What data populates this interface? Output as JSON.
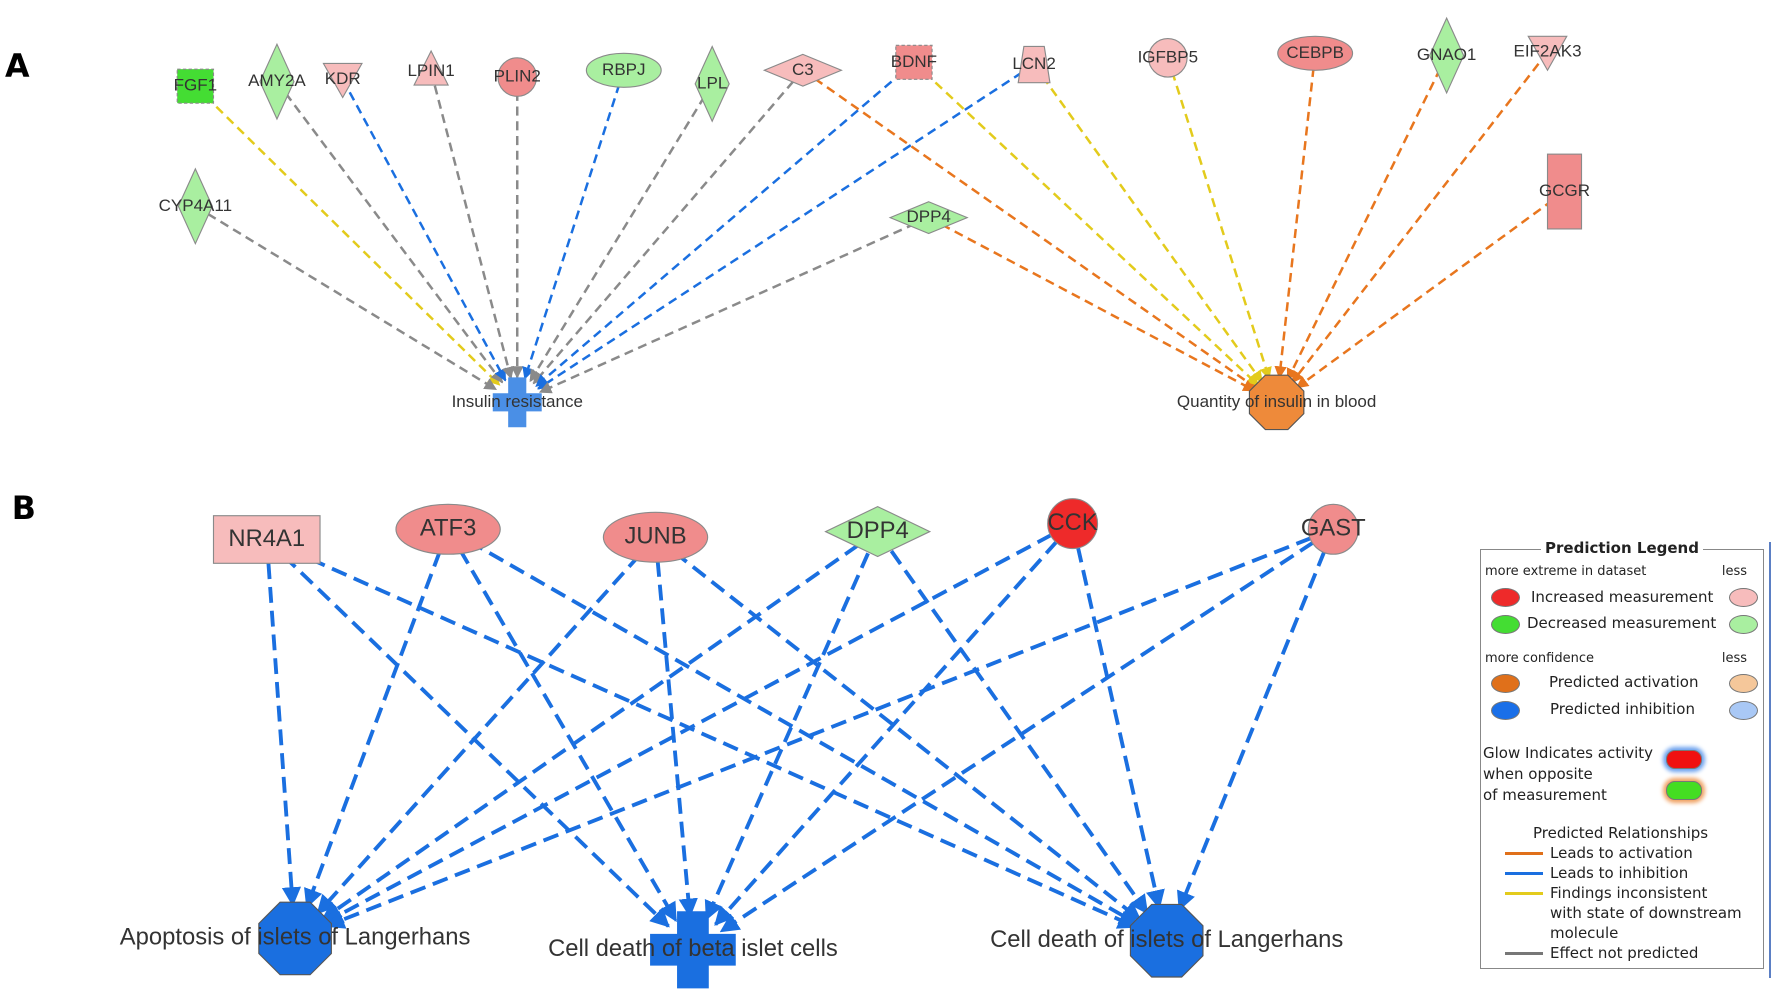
{
  "panels": {
    "a": "A",
    "b": "B"
  },
  "colors": {
    "activation": "#e8761e",
    "inhibition": "#1a6fe0",
    "inconsistent": "#e3cb1c",
    "not_predicted": "#8a8a8a",
    "increased_strong": "#ee2a2a",
    "increased_medium": "#f08c8c",
    "increased_weak": "#f7bcbc",
    "decreased_strong": "#44dd33",
    "decreased_weak": "#a9efa0",
    "predicted_activation": "#ee8a3a",
    "predicted_inhibition": "#1a6fe0",
    "predicted_inhibition_light": "#4a8fe6"
  },
  "panel_a": {
    "nodes": [
      {
        "id": "FGF1",
        "label": "FGF1",
        "shape": "rect-dashed",
        "fill": "decreased_strong"
      },
      {
        "id": "AMY2A",
        "label": "AMY2A",
        "shape": "diamond-tall",
        "fill": "decreased_weak"
      },
      {
        "id": "KDR",
        "label": "KDR",
        "shape": "triangle-down",
        "fill": "increased_weak"
      },
      {
        "id": "LPIN1",
        "label": "LPIN1",
        "shape": "triangle-up",
        "fill": "increased_weak"
      },
      {
        "id": "PLIN2",
        "label": "PLIN2",
        "shape": "circle",
        "fill": "increased_medium"
      },
      {
        "id": "RBPJ",
        "label": "RBPJ",
        "shape": "ellipse",
        "fill": "decreased_weak"
      },
      {
        "id": "LPL",
        "label": "LPL",
        "shape": "diamond-tall",
        "fill": "decreased_weak"
      },
      {
        "id": "C3",
        "label": "C3",
        "shape": "diamond-wide",
        "fill": "increased_weak"
      },
      {
        "id": "BDNF",
        "label": "BDNF",
        "shape": "rect-dashed",
        "fill": "increased_medium"
      },
      {
        "id": "LCN2",
        "label": "LCN2",
        "shape": "trapezoid",
        "fill": "increased_weak"
      },
      {
        "id": "IGFBP5",
        "label": "IGFBP5",
        "shape": "circle",
        "fill": "increased_weak"
      },
      {
        "id": "CEBPB",
        "label": "CEBPB",
        "shape": "ellipse",
        "fill": "increased_medium"
      },
      {
        "id": "GNAO1",
        "label": "GNAO1",
        "shape": "diamond-tall",
        "fill": "decreased_weak"
      },
      {
        "id": "EIF2AK3",
        "label": "EIF2AK3",
        "shape": "triangle-down",
        "fill": "increased_weak"
      },
      {
        "id": "CYP4A11",
        "label": "CYP4A11",
        "shape": "diamond-tall",
        "fill": "decreased_weak"
      },
      {
        "id": "DPP4",
        "label": "DPP4",
        "shape": "diamond-wide",
        "fill": "decreased_weak"
      },
      {
        "id": "GCGR",
        "label": "GCGR",
        "shape": "rect-tall",
        "fill": "increased_medium"
      },
      {
        "id": "IR",
        "label": "Insulin resistance",
        "shape": "cross",
        "fill": "predicted_inhibition_light"
      },
      {
        "id": "QIB",
        "label": "Quantity of insulin in blood",
        "shape": "octagon",
        "fill": "predicted_activation"
      }
    ],
    "edges": [
      {
        "from": "FGF1",
        "to": "IR",
        "type": "inconsistent"
      },
      {
        "from": "AMY2A",
        "to": "IR",
        "type": "not_predicted"
      },
      {
        "from": "KDR",
        "to": "IR",
        "type": "inhibition"
      },
      {
        "from": "LPIN1",
        "to": "IR",
        "type": "not_predicted"
      },
      {
        "from": "PLIN2",
        "to": "IR",
        "type": "not_predicted"
      },
      {
        "from": "RBPJ",
        "to": "IR",
        "type": "inhibition"
      },
      {
        "from": "LPL",
        "to": "IR",
        "type": "not_predicted"
      },
      {
        "from": "C3",
        "to": "IR",
        "type": "not_predicted"
      },
      {
        "from": "BDNF",
        "to": "IR",
        "type": "inhibition"
      },
      {
        "from": "LCN2",
        "to": "IR",
        "type": "inhibition"
      },
      {
        "from": "CYP4A11",
        "to": "IR",
        "type": "not_predicted"
      },
      {
        "from": "DPP4",
        "to": "IR",
        "type": "not_predicted"
      },
      {
        "from": "C3",
        "to": "QIB",
        "type": "activation"
      },
      {
        "from": "BDNF",
        "to": "QIB",
        "type": "inconsistent"
      },
      {
        "from": "LCN2",
        "to": "QIB",
        "type": "inconsistent"
      },
      {
        "from": "IGFBP5",
        "to": "QIB",
        "type": "inconsistent"
      },
      {
        "from": "CEBPB",
        "to": "QIB",
        "type": "activation"
      },
      {
        "from": "GNAO1",
        "to": "QIB",
        "type": "activation"
      },
      {
        "from": "EIF2AK3",
        "to": "QIB",
        "type": "activation"
      },
      {
        "from": "GCGR",
        "to": "QIB",
        "type": "activation"
      },
      {
        "from": "DPP4",
        "to": "QIB",
        "type": "activation"
      }
    ]
  },
  "panel_b": {
    "nodes": [
      {
        "id": "NR4A1",
        "label": "NR4A1",
        "shape": "rect",
        "fill": "increased_weak"
      },
      {
        "id": "ATF3",
        "label": "ATF3",
        "shape": "ellipse",
        "fill": "increased_medium"
      },
      {
        "id": "JUNB",
        "label": "JUNB",
        "shape": "ellipse",
        "fill": "increased_medium"
      },
      {
        "id": "DPP4",
        "label": "DPP4",
        "shape": "diamond-wide",
        "fill": "decreased_weak"
      },
      {
        "id": "CCK",
        "label": "CCK",
        "shape": "circle",
        "fill": "increased_strong"
      },
      {
        "id": "GAST",
        "label": "GAST",
        "shape": "circle",
        "fill": "increased_medium"
      },
      {
        "id": "APO",
        "label": "Apoptosis of islets of Langerhans",
        "shape": "octagon",
        "fill": "predicted_inhibition"
      },
      {
        "id": "CDB",
        "label": "Cell death of beta islet cells",
        "shape": "cross",
        "fill": "predicted_inhibition"
      },
      {
        "id": "CDI",
        "label": "Cell death of islets of Langerhans",
        "shape": "octagon",
        "fill": "predicted_inhibition"
      }
    ],
    "edges": [
      {
        "from": "NR4A1",
        "to": "APO",
        "type": "inhibition"
      },
      {
        "from": "NR4A1",
        "to": "CDB",
        "type": "inhibition"
      },
      {
        "from": "NR4A1",
        "to": "CDI",
        "type": "inhibition"
      },
      {
        "from": "ATF3",
        "to": "APO",
        "type": "inhibition"
      },
      {
        "from": "ATF3",
        "to": "CDB",
        "type": "inhibition"
      },
      {
        "from": "ATF3",
        "to": "CDI",
        "type": "inhibition"
      },
      {
        "from": "JUNB",
        "to": "APO",
        "type": "inhibition"
      },
      {
        "from": "JUNB",
        "to": "CDB",
        "type": "inhibition"
      },
      {
        "from": "JUNB",
        "to": "CDI",
        "type": "inhibition"
      },
      {
        "from": "DPP4",
        "to": "APO",
        "type": "inhibition"
      },
      {
        "from": "DPP4",
        "to": "CDB",
        "type": "inhibition"
      },
      {
        "from": "DPP4",
        "to": "CDI",
        "type": "inhibition"
      },
      {
        "from": "CCK",
        "to": "APO",
        "type": "inhibition"
      },
      {
        "from": "CCK",
        "to": "CDB",
        "type": "inhibition"
      },
      {
        "from": "CCK",
        "to": "CDI",
        "type": "inhibition"
      },
      {
        "from": "GAST",
        "to": "APO",
        "type": "inhibition"
      },
      {
        "from": "GAST",
        "to": "CDB",
        "type": "inhibition"
      },
      {
        "from": "GAST",
        "to": "CDI",
        "type": "inhibition"
      }
    ]
  },
  "legend": {
    "title": "Prediction Legend",
    "measure_header": "more extreme in dataset",
    "less": "less",
    "increased": "Increased measurement",
    "decreased": "Decreased measurement",
    "confidence_header": "more confidence",
    "activation": "Predicted activation",
    "inhibition": "Predicted inhibition",
    "glow_line1": "Glow Indicates activity",
    "glow_line2": "when opposite",
    "glow_line3": "of measurement",
    "relationships_title": "Predicted Relationships",
    "rel_activation": "Leads to activation",
    "rel_inhibition": "Leads to inhibition",
    "rel_inconsistent_1": "Findings inconsistent",
    "rel_inconsistent_2": "with state of downstream",
    "rel_inconsistent_3": "molecule",
    "rel_not_predicted": "Effect not predicted"
  }
}
